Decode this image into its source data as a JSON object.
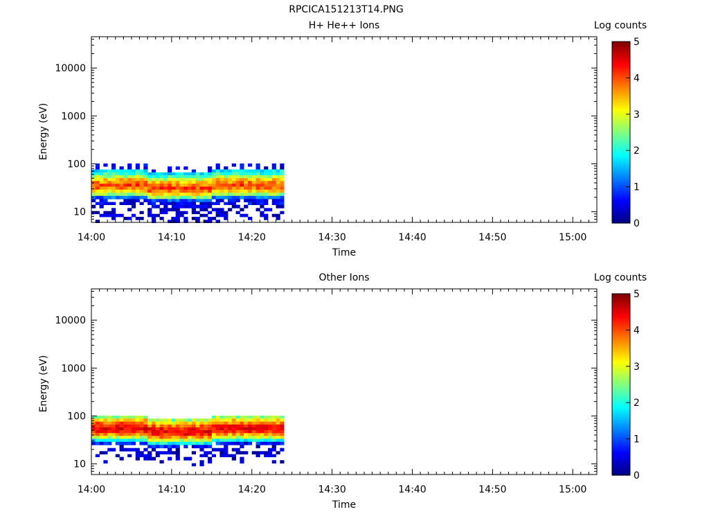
{
  "file_title": "RPCICA151213T14.PNG",
  "chart_data": [
    {
      "type": "heatmap",
      "title": "H+ He++ Ions",
      "xlabel": "Time",
      "ylabel": "Energy (eV)",
      "colorbar_label": "Log counts",
      "x_ticks": [
        "14:00",
        "14:10",
        "14:20",
        "14:30",
        "14:40",
        "14:50",
        "15:00"
      ],
      "x_range_minutes": [
        0,
        63
      ],
      "y_scale": "log",
      "y_ticks": [
        10,
        100,
        1000,
        10000
      ],
      "y_tick_labels": [
        "10",
        "100",
        "1000",
        "10000"
      ],
      "y_range": [
        6,
        45000
      ],
      "colorbar_ticks": [
        "0",
        "1",
        "2",
        "3",
        "4",
        "5"
      ],
      "colorbar_range": [
        0,
        5
      ],
      "colormap": "jet",
      "data_time_range_minutes": [
        0,
        24
      ],
      "energy_bins_eV": [
        95,
        82,
        71,
        62,
        54,
        47,
        41,
        36,
        31,
        27,
        23,
        20,
        17,
        15,
        13,
        11,
        9.7,
        8.4,
        7.3,
        6.3
      ],
      "profile": [
        [
          0,
          0,
          1.8,
          2.0,
          2.7,
          3.3,
          3.6,
          4.0,
          3.8,
          3.2,
          2.5,
          1.0,
          0.5,
          0.5,
          0.1,
          0.3,
          0.2,
          0.3,
          0.1,
          0
        ],
        [
          0.5,
          0.5,
          1.8,
          2.2,
          2.8,
          3.4,
          3.8,
          4.1,
          3.8,
          3.3,
          2.6,
          1.1,
          0.5,
          0.6,
          0.1,
          0.3,
          0.2,
          0.3,
          0.3,
          0.1
        ]
      ],
      "row_shift_by_minute": [
        0,
        0,
        0,
        0,
        0,
        0,
        0,
        1,
        1,
        1,
        1,
        1,
        1,
        1,
        1,
        0,
        0,
        0,
        0,
        0,
        0,
        0,
        0,
        0
      ]
    },
    {
      "type": "heatmap",
      "title": "Other Ions",
      "xlabel": "Time",
      "ylabel": "Energy (eV)",
      "colorbar_label": "Log counts",
      "x_ticks": [
        "14:00",
        "14:10",
        "14:20",
        "14:30",
        "14:40",
        "14:50",
        "15:00"
      ],
      "x_range_minutes": [
        0,
        63
      ],
      "y_scale": "log",
      "y_ticks": [
        10,
        100,
        1000,
        10000
      ],
      "y_tick_labels": [
        "10",
        "100",
        "1000",
        "10000"
      ],
      "y_range": [
        6,
        45000
      ],
      "colorbar_ticks": [
        "0",
        "1",
        "2",
        "3",
        "4",
        "5"
      ],
      "colorbar_range": [
        0,
        5
      ],
      "colormap": "jet",
      "data_time_range_minutes": [
        0,
        24
      ],
      "energy_bins_eV": [
        95,
        82,
        71,
        62,
        54,
        47,
        41,
        36,
        31,
        27,
        23,
        20,
        17,
        15,
        13,
        11,
        9.7,
        8.4,
        7.3,
        6.3
      ],
      "profile": [
        [
          2.5,
          3.2,
          3.7,
          4.2,
          4.4,
          4.2,
          3.5,
          2.8,
          1.8,
          0.6,
          0,
          0.3,
          0.2,
          0.2,
          0,
          0,
          0,
          0,
          0,
          0
        ],
        [
          2.7,
          3.4,
          3.9,
          4.3,
          4.5,
          4.3,
          3.7,
          3.0,
          2.0,
          0.8,
          0.3,
          0.3,
          0.3,
          0.3,
          0.2,
          0.2,
          0,
          0,
          0,
          0
        ]
      ],
      "row_shift_by_minute": [
        0,
        0,
        0,
        0,
        0,
        0,
        0,
        1,
        1,
        1,
        1,
        1,
        1,
        1,
        1,
        0,
        0,
        0,
        0,
        0,
        0,
        0,
        0,
        0
      ]
    }
  ]
}
